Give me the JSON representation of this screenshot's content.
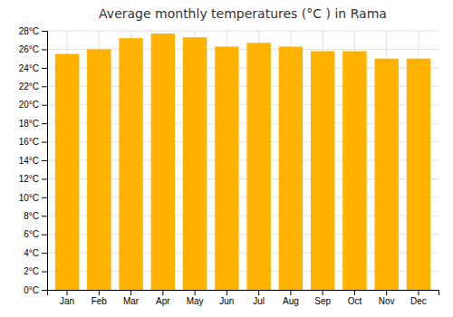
{
  "chart_data": {
    "type": "bar",
    "title": "Average monthly temperatures (°C ) in Rama",
    "categories": [
      "Jan",
      "Feb",
      "Mar",
      "Apr",
      "May",
      "Jun",
      "Jul",
      "Aug",
      "Sep",
      "Oct",
      "Nov",
      "Dec"
    ],
    "values": [
      25.5,
      26.0,
      27.2,
      27.7,
      27.3,
      26.3,
      26.7,
      26.3,
      25.8,
      25.8,
      25.0,
      25.0
    ],
    "color": "#FFB300",
    "ylim": [
      0,
      28
    ],
    "yticks": [
      {
        "value": 0,
        "label": "0°C"
      },
      {
        "value": 2,
        "label": "2°C"
      },
      {
        "value": 4,
        "label": "4°C"
      },
      {
        "value": 6,
        "label": "6°C"
      },
      {
        "value": 8,
        "label": "8°C"
      },
      {
        "value": 10,
        "label": "10°C"
      },
      {
        "value": 12,
        "label": "12°C"
      },
      {
        "value": 14,
        "label": "14°C"
      },
      {
        "value": 16,
        "label": "16°C"
      },
      {
        "value": 18,
        "label": "18°C"
      },
      {
        "value": 20,
        "label": "20°C"
      },
      {
        "value": 22,
        "label": "22°C"
      },
      {
        "value": 24,
        "label": "24°C"
      },
      {
        "value": 26,
        "label": "26°C"
      },
      {
        "value": 28,
        "label": "28°C"
      }
    ],
    "grid": true
  }
}
